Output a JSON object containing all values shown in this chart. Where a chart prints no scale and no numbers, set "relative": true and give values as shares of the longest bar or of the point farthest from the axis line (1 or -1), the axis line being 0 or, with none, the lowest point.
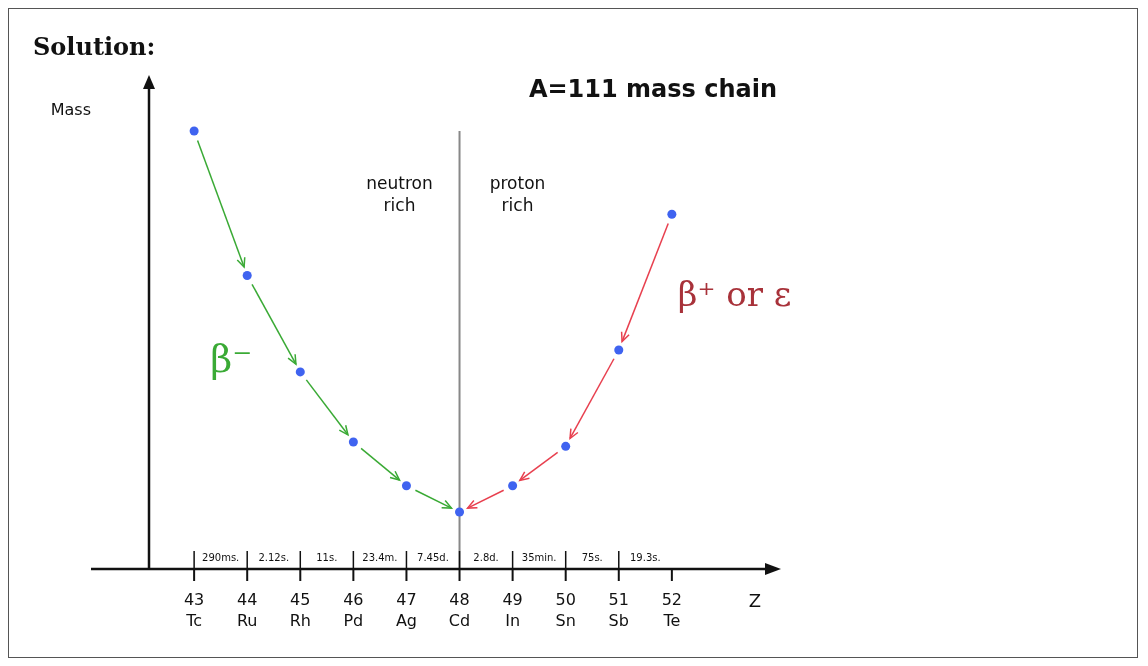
{
  "chart_data": {
    "type": "scatter",
    "title": "A=111 mass chain",
    "xlabel": "Z",
    "ylabel": "Mass",
    "relative": true,
    "marker": "circle",
    "categories": [
      "43\nTc",
      "44\nRu",
      "45\nRh",
      "46\nPd",
      "47\nAg",
      "48\nCd",
      "49\nIn",
      "50\nSn",
      "51\nSb",
      "52\nTe"
    ],
    "series": [
      {
        "color": "#3f63f0",
        "values": [
          1,
          0.67,
          0.45,
          0.29,
          0.19,
          0.13,
          0.19,
          0.28,
          0.5,
          0.81
        ]
      }
    ],
    "ref_lines": [
      {
        "axis": "x",
        "value": "48\nCd",
        "color": "#888888"
      }
    ],
    "annotations": [
      "Solution:",
      "neutron\nrich",
      "proton\nrich",
      "β⁻",
      "β⁺ or ε",
      "290ms.",
      "2.12s.",
      "11s.",
      "23.4m.",
      "7.45d.",
      "2.8d.",
      "35min.",
      "75s.",
      "19.3s."
    ]
  }
}
